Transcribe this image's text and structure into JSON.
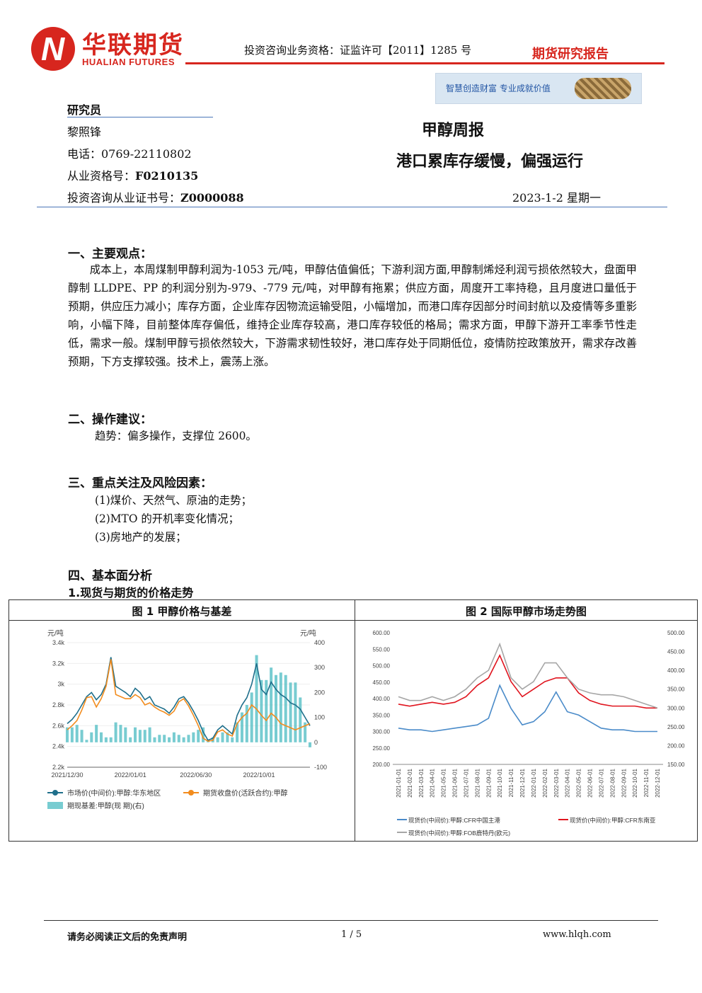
{
  "header": {
    "logo_cn": "华联期货",
    "logo_en": "HUALIAN FUTURES",
    "logo_mark": "N",
    "qualification": "投资咨询业务资格：证监许可【2011】1285 号",
    "report_type": "期货研究报告",
    "slogan": "智慧创造财富  专业成就价值"
  },
  "analyst": {
    "heading": "研究员",
    "name": "黎照锋",
    "phone": "电话：0769-22110802",
    "license_label": "从业资格号：",
    "license": "F0210135",
    "advisor_label": "投资咨询从业证书号：",
    "advisor": "Z0000088"
  },
  "report": {
    "title": "甲醇周报",
    "subtitle": "港口累库存缓慢，偏强运行",
    "date": "2023-1-2 星期一"
  },
  "sections": {
    "s1_title": "一、主要观点：",
    "s1_text": "成本上，本周煤制甲醇利润为-1053 元/吨，甲醇估值偏低；下游利润方面,甲醇制烯烃利润亏损依然较大，盘面甲醇制 LLDPE、PP 的利润分别为-979、-779 元/吨，对甲醇有拖累；供应方面，周度开工率持稳，且月度进口量低于预期，供应压力减小；库存方面，企业库存因物流运输受阻，小幅增加，而港口库存因部分时间封航以及疫情等多重影响，小幅下降，目前整体库存偏低，维持企业库存较高，港口库存较低的格局；需求方面，甲醇下游开工率季节性走低，需求一般。煤制甲醇亏损依然较大，下游需求韧性较好，港口库存处于同期低位，疫情防控政策放开，需求存改善预期，下方支撑较强。技术上，震荡上涨。",
    "s2_title": "二、操作建议：",
    "s2_text": "趋势：偏多操作，支撑位 2600。",
    "s3_title": "三、重点关注及风险因素：",
    "s3_items": [
      "(1)煤价、天然气、原油的走势；",
      "(2)MTO 的开机率变化情况；",
      "(3)房地产的发展；"
    ],
    "s4_title": "四、基本面分析",
    "s4_sub": "1.现货与期货的价格走势"
  },
  "figures": {
    "fig1_caption": "图 1  甲醇价格与基差",
    "fig2_caption": "图 2  国际甲醇市场走势图"
  },
  "chart_data": [
    {
      "type": "line",
      "title": "图 1  甲醇价格与基差",
      "y_left_unit": "元/吨",
      "y_right_unit": "元/吨",
      "y_left_ticks": [
        "2.2k",
        "2.4k",
        "2.6k",
        "2.8k",
        "3k",
        "3.2k",
        "3.4k"
      ],
      "y_right_ticks": [
        "-100",
        "0",
        "100",
        "200",
        "300",
        "400"
      ],
      "ylim_left": [
        2200,
        3400
      ],
      "ylim_right": [
        -100,
        400
      ],
      "x_ticks": [
        "2021/12/30",
        "2022/01/01",
        "2022/06/30",
        "2022/10/01"
      ],
      "series": [
        {
          "name": "市场价(中间价):甲醇:华东地区",
          "color": "#1f6f8b",
          "values": [
            2620,
            2660,
            2720,
            2800,
            2880,
            2920,
            2850,
            2900,
            3000,
            3260,
            2980,
            2950,
            2920,
            2880,
            2960,
            2920,
            2850,
            2880,
            2800,
            2780,
            2760,
            2720,
            2780,
            2860,
            2880,
            2820,
            2740,
            2650,
            2540,
            2460,
            2480,
            2560,
            2600,
            2560,
            2520,
            2700,
            2800,
            2870,
            3000,
            3200,
            2950,
            2900,
            3020,
            2950,
            2900,
            2870,
            2820,
            2800,
            2760,
            2680,
            2600
          ]
        },
        {
          "name": "期货收盘价(活跃合约):甲醇",
          "color": "#f28c1e",
          "values": [
            2560,
            2600,
            2650,
            2750,
            2870,
            2880,
            2780,
            2860,
            2980,
            3240,
            2900,
            2880,
            2860,
            2860,
            2900,
            2870,
            2800,
            2820,
            2780,
            2750,
            2730,
            2700,
            2740,
            2830,
            2860,
            2790,
            2700,
            2600,
            2480,
            2450,
            2460,
            2540,
            2560,
            2520,
            2500,
            2620,
            2680,
            2720,
            2800,
            2760,
            2700,
            2650,
            2720,
            2680,
            2620,
            2600,
            2580,
            2560,
            2580,
            2600,
            2620
          ]
        },
        {
          "name": "期现基差:甲醇(现  期)(右)",
          "color": "#3fb7bd",
          "type": "bar",
          "values": [
            60,
            60,
            70,
            50,
            10,
            40,
            70,
            40,
            20,
            20,
            80,
            70,
            60,
            20,
            60,
            50,
            50,
            60,
            20,
            30,
            30,
            20,
            40,
            30,
            20,
            30,
            40,
            50,
            60,
            10,
            20,
            20,
            40,
            40,
            20,
            80,
            120,
            150,
            200,
            350,
            250,
            250,
            300,
            270,
            280,
            270,
            240,
            240,
            180,
            80,
            -20
          ]
        }
      ]
    },
    {
      "type": "line",
      "title": "图 2  国际甲醇市场走势图",
      "y_left_ticks": [
        "200.00",
        "250.00",
        "300.00",
        "350.00",
        "400.00",
        "450.00",
        "500.00",
        "550.00",
        "600.00"
      ],
      "y_right_ticks": [
        "150.00",
        "200.00",
        "250.00",
        "300.00",
        "350.00",
        "400.00",
        "450.00",
        "500.00"
      ],
      "ylim_left": [
        200,
        600
      ],
      "ylim_right": [
        150,
        500
      ],
      "x": [
        "2021-01-01",
        "2021-02-01",
        "2021-03-01",
        "2021-04-01",
        "2021-05-01",
        "2021-06-01",
        "2021-07-01",
        "2021-08-01",
        "2021-09-01",
        "2021-10-01",
        "2021-11-01",
        "2021-12-01",
        "2022-01-01",
        "2022-02-01",
        "2022-03-01",
        "2022-04-01",
        "2022-05-01",
        "2022-06-01",
        "2022-07-01",
        "2022-08-01",
        "2022-09-01",
        "2022-10-01",
        "2022-11-01",
        "2022-12-01"
      ],
      "series": [
        {
          "name": "现货价(中间价):甲醇:CFR中国主港",
          "color": "#4a8bc9",
          "axis": "left",
          "values": [
            310,
            305,
            305,
            300,
            305,
            310,
            315,
            320,
            340,
            440,
            370,
            320,
            330,
            360,
            420,
            360,
            350,
            330,
            310,
            305,
            305,
            300,
            300,
            300
          ]
        },
        {
          "name": "现货价(中间价):甲醇:CFR东南亚",
          "color": "#e0141e",
          "axis": "right",
          "values": [
            310,
            305,
            310,
            315,
            310,
            315,
            330,
            360,
            380,
            440,
            370,
            330,
            350,
            370,
            380,
            380,
            340,
            320,
            310,
            305,
            305,
            305,
            300,
            300
          ]
        },
        {
          "name": "现货价(中间价):甲醇:FOB鹿特丹(欧元)",
          "color": "#a6a6a6",
          "axis": "right",
          "values": [
            330,
            320,
            320,
            330,
            320,
            330,
            350,
            380,
            400,
            470,
            380,
            350,
            370,
            420,
            420,
            380,
            350,
            340,
            335,
            335,
            330,
            320,
            310,
            300
          ]
        }
      ]
    }
  ],
  "footer": {
    "disclaimer": "请务必阅读正文后的免责声明",
    "page": "1 / 5",
    "website": "www.hlqh.com"
  }
}
